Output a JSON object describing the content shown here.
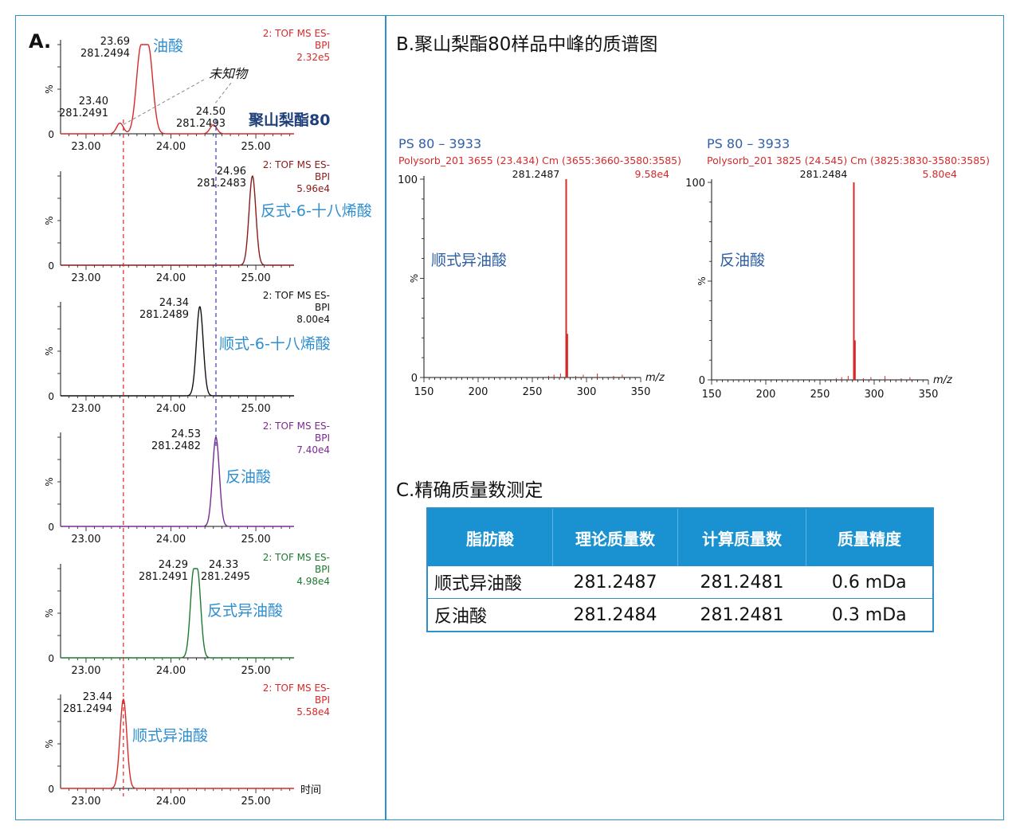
{
  "panelA": {
    "label": "A.",
    "pct": "%",
    "time_label": "时间",
    "x_ticks": [
      "23.00",
      "24.00",
      "25.00"
    ],
    "annotations": {
      "unknown": "未知物",
      "ps80": "聚山梨酯80"
    },
    "traces": [
      {
        "name": "油酸",
        "color": "#d62a2a",
        "header": [
          "2: TOF MS ES-",
          "BPI",
          "2.32e5"
        ],
        "peaks": [
          {
            "rt": 23.69,
            "mass": "281.2494",
            "rt_label": "23.69",
            "height": 1.0,
            "width": 0.055,
            "flat": 0.08
          },
          {
            "rt": 23.4,
            "mass": "281.2491",
            "rt_label": "23.40",
            "height": 0.12,
            "width": 0.04
          },
          {
            "rt": 24.5,
            "mass": "281.2493",
            "rt_label": "24.50",
            "height": 0.1,
            "width": 0.04
          }
        ]
      },
      {
        "name": "反式-6-十八烯酸",
        "color": "#8b1a1a",
        "header": [
          "2: TOF MS ES-",
          "BPI",
          "5.96e4"
        ],
        "peaks": [
          {
            "rt": 24.96,
            "mass": "281.2483",
            "rt_label": "24.96",
            "height": 1.0,
            "width": 0.04
          }
        ]
      },
      {
        "name": "顺式-6-十八烯酸",
        "color": "#111111",
        "header": [
          "2: TOF MS ES-",
          "BPI",
          "8.00e4"
        ],
        "peaks": [
          {
            "rt": 24.34,
            "mass": "281.2489",
            "rt_label": "24.34",
            "height": 1.0,
            "width": 0.04
          }
        ]
      },
      {
        "name": "反油酸",
        "color": "#7b2a8f",
        "header": [
          "2: TOF MS ES-",
          "BPI",
          "7.40e4"
        ],
        "peaks": [
          {
            "rt": 24.53,
            "mass": "281.2482",
            "rt_label": "24.53",
            "height": 1.0,
            "width": 0.04
          }
        ]
      },
      {
        "name": "反式异油酸",
        "color": "#1e7a33",
        "header": [
          "2: TOF MS ES-",
          "BPI",
          "4.98e4"
        ],
        "peaks": [
          {
            "rt": 24.29,
            "mass": "281.2491",
            "rt_label": "24.29",
            "height": 1.0,
            "width": 0.04,
            "flat": 0.04
          },
          {
            "rt": 24.33,
            "mass": "281.2495",
            "rt_label": "24.33",
            "height": 0.0,
            "width": 0.01
          }
        ]
      },
      {
        "name": "顺式异油酸",
        "color": "#d62a2a",
        "header": [
          "2: TOF MS ES-",
          "BPI",
          "5.58e4"
        ],
        "peaks": [
          {
            "rt": 23.44,
            "mass": "281.2494",
            "rt_label": "23.44",
            "height": 1.0,
            "width": 0.04
          }
        ]
      }
    ]
  },
  "panelB": {
    "title": "B.聚山梨酯80样品中峰的质谱图",
    "spectra": [
      {
        "id": "PS 80 – 3933",
        "scan": "Polysorb_201 3655 (23.434) Cm (3655:3660-3580:3585)",
        "intensity": "9.58e4",
        "base_peak": "281.2487",
        "name": "顺式异油酸"
      },
      {
        "id": "PS 80 – 3933",
        "scan": "Polysorb_201 3825 (24.545) Cm (3825:3830-3580:3585)",
        "intensity": "5.80e4",
        "base_peak": "281.2484",
        "name": "反油酸"
      }
    ],
    "x_label": "m/z",
    "pct": "%",
    "y_ticks": [
      "100",
      "0"
    ],
    "x_ticks": [
      "150",
      "200",
      "250",
      "300",
      "350"
    ]
  },
  "panelC": {
    "title": "C.精确质量数测定",
    "headers": [
      "脂肪酸",
      "理论质量数",
      "计算质量数",
      "质量精度"
    ],
    "rows": [
      [
        "顺式异油酸",
        "281.2487",
        "281.2481",
        "0.6 mDa"
      ],
      [
        "反油酸",
        "281.2484",
        "281.2481",
        "0.3 mDa"
      ]
    ]
  },
  "colors": {
    "frame": "#2f8fc9",
    "label_blue": "#2f8fd0",
    "table_header": "#1a92d1",
    "spectrum_red": "#d62a2a"
  },
  "chart_data": [
    {
      "type": "line",
      "title": "",
      "xlabel": "时间",
      "ylabel": "%",
      "xlim": [
        22.7,
        25.45
      ],
      "series": [
        {
          "name": "油酸",
          "peaks_rt": [
            23.4,
            23.69,
            24.5
          ],
          "peaks_mass": [
            281.2491,
            281.2494,
            281.2493
          ]
        },
        {
          "name": "反式-6-十八烯酸",
          "peaks_rt": [
            24.96
          ],
          "peaks_mass": [
            281.2483
          ]
        },
        {
          "name": "顺式-6-十八烯酸",
          "peaks_rt": [
            24.34
          ],
          "peaks_mass": [
            281.2489
          ]
        },
        {
          "name": "反油酸",
          "peaks_rt": [
            24.53
          ],
          "peaks_mass": [
            281.2482
          ]
        },
        {
          "name": "反式异油酸",
          "peaks_rt": [
            24.29,
            24.33
          ],
          "peaks_mass": [
            281.2491,
            281.2495
          ]
        },
        {
          "name": "顺式异油酸",
          "peaks_rt": [
            23.44
          ],
          "peaks_mass": [
            281.2494
          ]
        }
      ],
      "reference_lines_rt": [
        23.44,
        24.53
      ]
    },
    {
      "type": "bar",
      "title": "PS 80 – 3933",
      "xlabel": "m/z",
      "ylabel": "%",
      "xlim": [
        150,
        350
      ],
      "ylim": [
        0,
        100
      ],
      "x": [
        281.2487,
        282.25
      ],
      "values": [
        100,
        22
      ]
    },
    {
      "type": "bar",
      "title": "PS 80 – 3933",
      "xlabel": "m/z",
      "ylabel": "%",
      "xlim": [
        150,
        350
      ],
      "ylim": [
        0,
        100
      ],
      "x": [
        281.2484,
        282.25
      ],
      "values": [
        100,
        20
      ]
    },
    {
      "type": "table",
      "columns": [
        "脂肪酸",
        "理论质量数",
        "计算质量数",
        "质量精度"
      ],
      "rows": [
        [
          "顺式异油酸",
          "281.2487",
          "281.2481",
          "0.6 mDa"
        ],
        [
          "反油酸",
          "281.2484",
          "281.2481",
          "0.3 mDa"
        ]
      ]
    }
  ]
}
